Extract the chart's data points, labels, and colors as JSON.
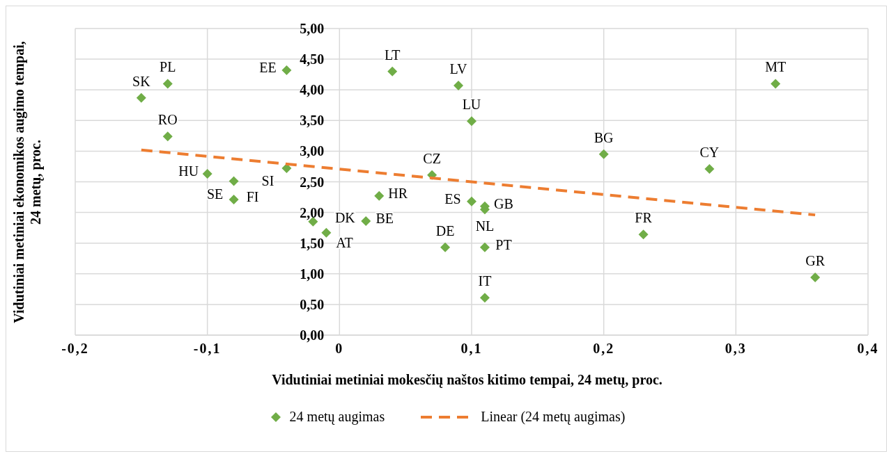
{
  "chart_data": {
    "type": "scatter",
    "xlabel": "Vidutiniai metiniai mokesčių naštos kitimo tempai, 24 metų, proc.",
    "ylabel": "Vidutiniai metiniai ekonomikos augimo tempai, 24 metų, proc.",
    "xlim": [
      -0.2,
      0.4
    ],
    "xticks": [
      {
        "value": -0.2,
        "label": "-0,2"
      },
      {
        "value": -0.1,
        "label": "-0,1"
      },
      {
        "value": 0,
        "label": "0"
      },
      {
        "value": 0.1,
        "label": "0,1"
      },
      {
        "value": 0.2,
        "label": "0,2"
      },
      {
        "value": 0.3,
        "label": "0,3"
      },
      {
        "value": 0.4,
        "label": "0,4"
      }
    ],
    "ylim": [
      0,
      5
    ],
    "yticks": [
      {
        "value": 0,
        "label": "0,00"
      },
      {
        "value": 0.5,
        "label": "0,50"
      },
      {
        "value": 1,
        "label": "1,00"
      },
      {
        "value": 1.5,
        "label": "1,50"
      },
      {
        "value": 2,
        "label": "2,00"
      },
      {
        "value": 2.5,
        "label": "2,50"
      },
      {
        "value": 3,
        "label": "3,00"
      },
      {
        "value": 3.5,
        "label": "3,50"
      },
      {
        "value": 4,
        "label": "4,00"
      },
      {
        "value": 4.5,
        "label": "4,50"
      },
      {
        "value": 5,
        "label": "5,00"
      }
    ],
    "grid": true,
    "legend": "bottom",
    "marker": "diamond",
    "series": [
      {
        "name": "24 metų augimas",
        "color": "#70ad47",
        "x": [
          -0.15,
          -0.13,
          -0.13,
          -0.04,
          -0.04,
          -0.1,
          -0.08,
          -0.08,
          -0.02,
          -0.01,
          0.02,
          0.03,
          0.04,
          0.09,
          0.1,
          0.07,
          0.1,
          0.11,
          0.11,
          0.08,
          0.11,
          0.11,
          0.2,
          0.28,
          0.23,
          0.33,
          0.36
        ],
        "values": [
          3.87,
          4.1,
          3.24,
          4.32,
          2.72,
          2.63,
          2.51,
          2.21,
          1.85,
          1.67,
          1.86,
          2.27,
          4.3,
          4.07,
          3.49,
          2.61,
          2.18,
          2.1,
          2.05,
          1.43,
          1.43,
          0.61,
          2.95,
          2.71,
          1.64,
          4.1,
          0.94
        ]
      },
      {
        "name": "Linear (24 metų augimas)",
        "type": "line",
        "color": "#ed7d31",
        "line_style": "dashed",
        "marker": "none",
        "x": [
          -0.15,
          0.36
        ],
        "values": [
          3.02,
          1.96
        ]
      }
    ],
    "annotations": [
      {
        "text": "SK",
        "x": -0.15,
        "y": 3.87
      },
      {
        "text": "PL",
        "x": -0.13,
        "y": 4.1
      },
      {
        "text": "RO",
        "x": -0.13,
        "y": 3.24
      },
      {
        "text": "EE",
        "x": -0.04,
        "y": 4.32
      },
      {
        "text": "SI",
        "x": -0.04,
        "y": 2.72
      },
      {
        "text": "HU",
        "x": -0.1,
        "y": 2.63
      },
      {
        "text": "SE",
        "x": -0.08,
        "y": 2.51
      },
      {
        "text": "FI",
        "x": -0.08,
        "y": 2.21
      },
      {
        "text": "AT",
        "x": -0.02,
        "y": 1.85
      },
      {
        "text": "DK",
        "x": -0.01,
        "y": 1.67
      },
      {
        "text": "BE",
        "x": 0.02,
        "y": 1.86
      },
      {
        "text": "HR",
        "x": 0.03,
        "y": 2.27
      },
      {
        "text": "LT",
        "x": 0.04,
        "y": 4.3
      },
      {
        "text": "LV",
        "x": 0.09,
        "y": 4.07
      },
      {
        "text": "LU",
        "x": 0.1,
        "y": 3.49
      },
      {
        "text": "CZ",
        "x": 0.07,
        "y": 2.61
      },
      {
        "text": "ES",
        "x": 0.1,
        "y": 2.18
      },
      {
        "text": "GB",
        "x": 0.11,
        "y": 2.1
      },
      {
        "text": "NL",
        "x": 0.11,
        "y": 2.05
      },
      {
        "text": "DE",
        "x": 0.08,
        "y": 1.43
      },
      {
        "text": "PT",
        "x": 0.11,
        "y": 1.43
      },
      {
        "text": "IT",
        "x": 0.11,
        "y": 0.61
      },
      {
        "text": "BG",
        "x": 0.2,
        "y": 2.95
      },
      {
        "text": "CY",
        "x": 0.28,
        "y": 2.71
      },
      {
        "text": "FR",
        "x": 0.23,
        "y": 1.64
      },
      {
        "text": "MT",
        "x": 0.33,
        "y": 4.1
      },
      {
        "text": "GR",
        "x": 0.36,
        "y": 0.94
      }
    ]
  }
}
